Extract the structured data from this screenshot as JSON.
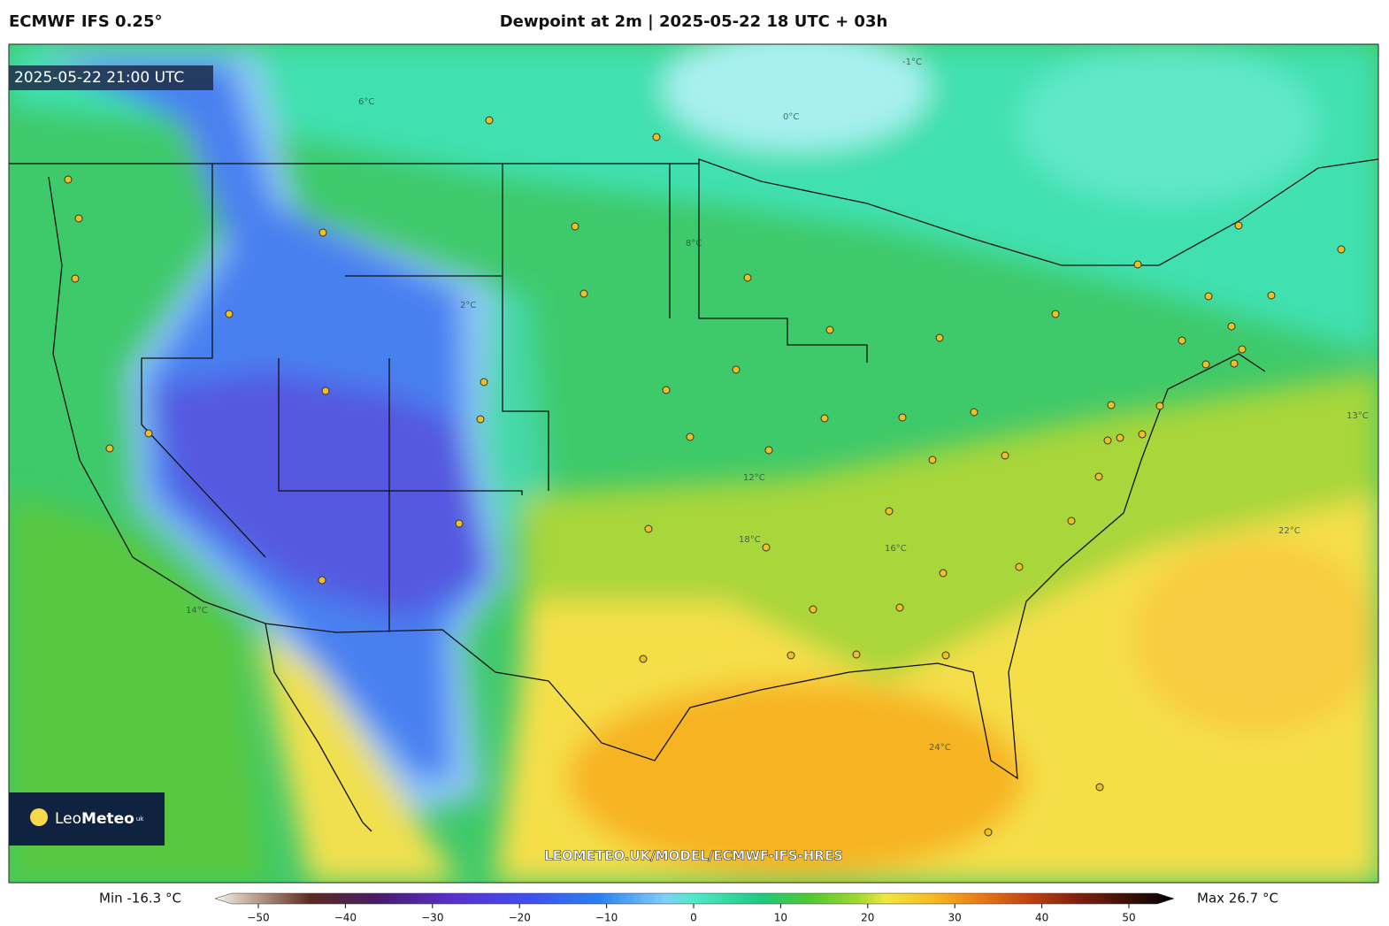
{
  "header": {
    "model": "ECMWF IFS 0.25°",
    "title": "Dewpoint at 2m | 2025-05-22 18 UTC + 03h"
  },
  "map": {
    "valid_time": "2025-05-22 21:00 UTC",
    "watermark": "LEOMETEO.UK/MODEL/ECMWF-IFS-HRES",
    "logo": {
      "prefix": "Leo",
      "name": "Meteo",
      "suffix": "uk"
    },
    "contour_labels": [
      "0°C",
      "-1°C",
      "2°C",
      "6°C",
      "8°C",
      "12°C",
      "14°C",
      "18°C",
      "22°C",
      "24°C",
      "13°C",
      "16°C"
    ]
  },
  "legend": {
    "min": "Min -16.3 °C",
    "max": "Max 26.7 °C",
    "ticks": [
      {
        "value": -50,
        "label": "−50"
      },
      {
        "value": -40,
        "label": "−40"
      },
      {
        "value": -30,
        "label": "−30"
      },
      {
        "value": -20,
        "label": "−20"
      },
      {
        "value": -10,
        "label": "−10"
      },
      0,
      10,
      20,
      30,
      40,
      50
    ]
  }
}
